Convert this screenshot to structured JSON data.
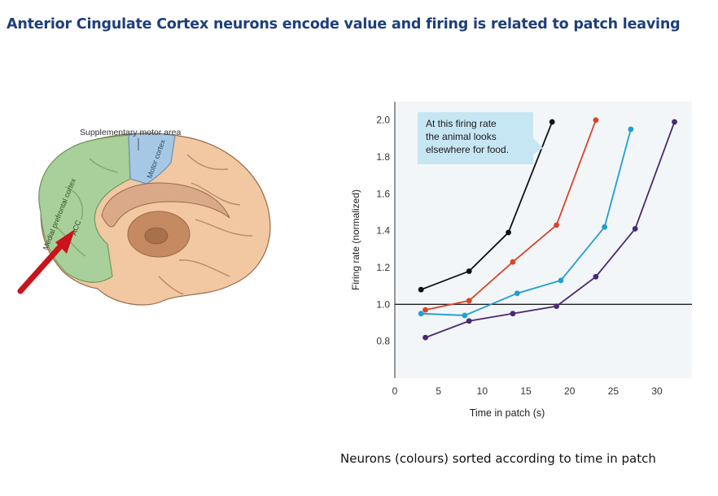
{
  "slide": {
    "title": "Anterior Cingulate Cortex neurons encode value and firing is related to patch leaving",
    "caption": "Neurons (colours) sorted according to time in patch"
  },
  "brain": {
    "labels": {
      "supplementary": "Supplementary motor area",
      "motor": "Motor cortex",
      "prefrontal": "Medial prefrontal cortex",
      "acc": "ACC"
    },
    "colors": {
      "prefrontal": "#a9cf9a",
      "motor": "#a6c8e4",
      "cortex": "#f1c8a2",
      "arrow": "#c8141a"
    },
    "icon": "arrow-icon"
  },
  "chart_data": {
    "type": "line",
    "xlabel": "Time in patch (s)",
    "ylabel": "Firing rate (normalized)",
    "xlim": [
      0,
      34
    ],
    "ylim": [
      0.6,
      2.1
    ],
    "xticks": [
      "0",
      "5",
      "10",
      "15",
      "20",
      "25",
      "30"
    ],
    "yticks": [
      "0.8",
      "1.0",
      "1.2",
      "1.4",
      "1.6",
      "1.8",
      "2.0"
    ],
    "reference_line": 1.0,
    "annotation": {
      "lines": [
        "At this firing rate",
        "the animal looks",
        "elsewhere for food."
      ],
      "color": "#c7e6f4"
    },
    "series": [
      {
        "color": "#111111",
        "x": [
          3,
          8.5,
          13,
          18
        ],
        "y": [
          1.08,
          1.18,
          1.39,
          1.99
        ]
      },
      {
        "color": "#d6452c",
        "x": [
          3.5,
          8.5,
          13.5,
          18.5,
          23
        ],
        "y": [
          0.97,
          1.02,
          1.23,
          1.43,
          2.0
        ]
      },
      {
        "color": "#1f9ed0",
        "x": [
          3,
          8,
          14,
          19,
          24,
          27
        ],
        "y": [
          0.95,
          0.94,
          1.06,
          1.13,
          1.42,
          1.95
        ]
      },
      {
        "color": "#4a2a72",
        "x": [
          3.5,
          8.5,
          13.5,
          18.5,
          23,
          27.5,
          32
        ],
        "y": [
          0.82,
          0.91,
          0.95,
          0.99,
          1.15,
          1.41,
          1.99
        ]
      }
    ]
  }
}
